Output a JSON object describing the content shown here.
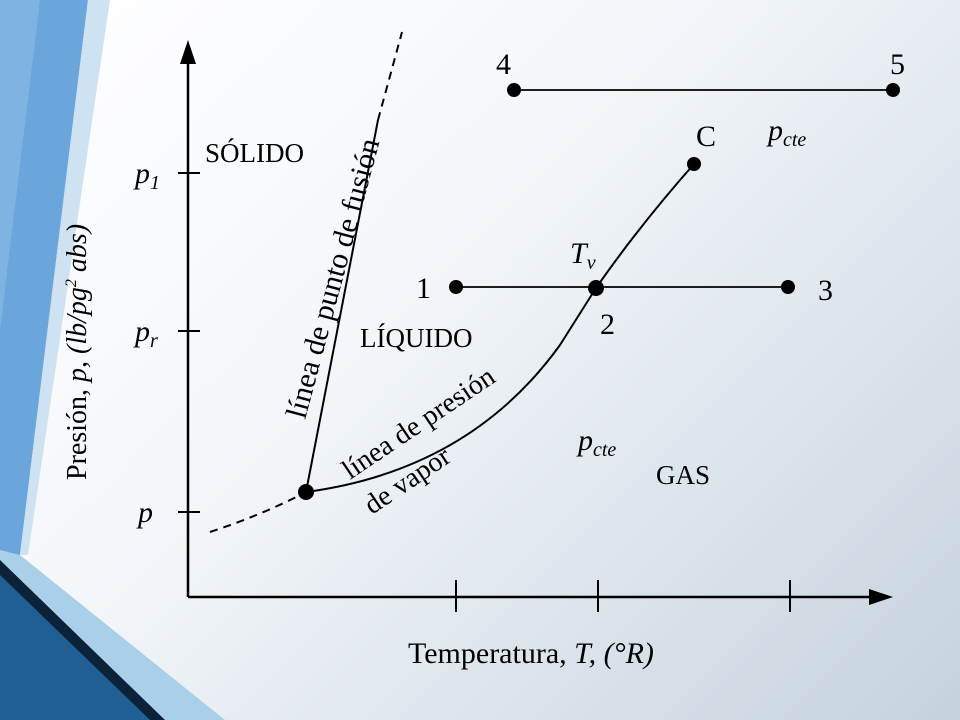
{
  "diagram": {
    "ylabel_main": "Presión, ",
    "ylabel_rest": "p, (lb/pg",
    "ylabel_sup": "2",
    "ylabel_end": " abs)",
    "xlabel_main": "Temperatura, ",
    "xlabel_rest": "T, (°R)",
    "y_ticks": {
      "p1_base": "p",
      "p1_sub": "1",
      "pr_base": "p",
      "pr_sub": "r",
      "p": "p"
    },
    "regions": {
      "solid": "SÓLIDO",
      "liquid": "LÍQUIDO",
      "gas": "GAS"
    },
    "curves": {
      "fusion": "línea de punto de fusión",
      "vapor_line1": "línea de presión",
      "vapor_line2": "de vapor"
    },
    "points": {
      "p1": "1",
      "p2": "2",
      "p3": "3",
      "p4": "4",
      "p5": "5",
      "critical": "C"
    },
    "tv_base": "T",
    "tv_sub": "v",
    "pcte_base": "p",
    "pcte_sub": "cte"
  },
  "colors": {
    "background": "#eef2f6",
    "accent_blue": "#6aa6dc",
    "accent_dark": "#1f5f94",
    "accent_light": "#aacfe8"
  }
}
